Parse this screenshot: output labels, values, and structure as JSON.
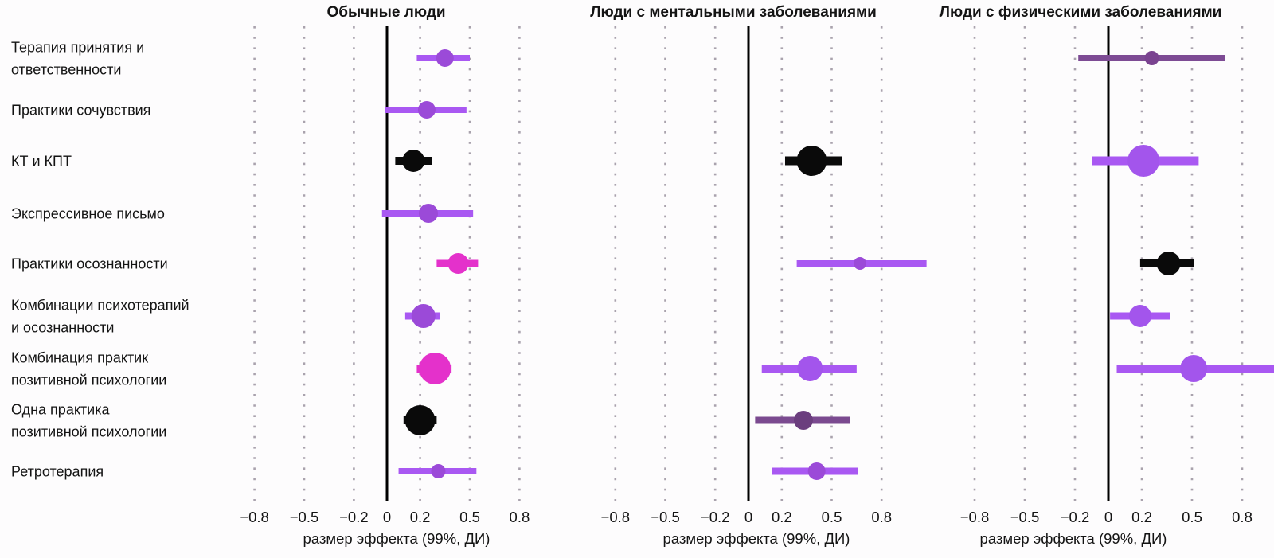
{
  "chart_data": {
    "type": "scatter",
    "variant": "forest-plot-three-panels",
    "xlabel": "размер эффекта (99%, ДИ)",
    "xticks": [
      -0.8,
      -0.5,
      -0.2,
      0,
      0.2,
      0.5,
      0.8
    ],
    "xtick_labels": [
      "−0.8",
      "−0.5",
      "−0.2",
      "0",
      "0.2",
      "0.5",
      "0.8"
    ],
    "grid": "dotted vertical gridlines at each tick, solid black line at zero",
    "categories": [
      {
        "label": "Терапия принятия и ответственности",
        "lines": [
          "Терапия принятия и",
          "ответственности"
        ]
      },
      {
        "label": "Практики сочувствия",
        "lines": [
          "Практики сочувствия"
        ]
      },
      {
        "label": "КТ и КПТ",
        "lines": [
          "КТ и КПТ"
        ]
      },
      {
        "label": "Экспрессивное письмо",
        "lines": [
          "Экспрессивное письмо"
        ]
      },
      {
        "label": "Практики осознанности",
        "lines": [
          "Практики осознанности"
        ]
      },
      {
        "label": "Комбинации психотерапий и осознанности",
        "lines": [
          "Комбинации психотерапий",
          "и осознанности"
        ]
      },
      {
        "label": "Комбинация практик позитивной психологии",
        "lines": [
          "Комбинация практик",
          "позитивной психологии"
        ]
      },
      {
        "label": "Одна практика позитивной психологии",
        "lines": [
          "Одна практика",
          "позитивной психологии"
        ]
      },
      {
        "label": "Ретротерапия",
        "lines": [
          "Ретротерапия"
        ]
      }
    ],
    "panels": [
      {
        "title": "Обычные люди",
        "xlim": [
          -0.88,
          0.9
        ],
        "points": [
          {
            "category": 0,
            "value": 0.35,
            "ci": [
              0.18,
              0.5
            ],
            "radius": 11,
            "lw": 8,
            "dot": "violet_mid",
            "line": "violet"
          },
          {
            "category": 1,
            "value": 0.24,
            "ci": [
              -0.01,
              0.48
            ],
            "radius": 11,
            "lw": 8,
            "dot": "violet_mid",
            "line": "violet"
          },
          {
            "category": 2,
            "value": 0.16,
            "ci": [
              0.05,
              0.27
            ],
            "radius": 14,
            "lw": 10,
            "dot": "black",
            "line": "black"
          },
          {
            "category": 3,
            "value": 0.25,
            "ci": [
              -0.03,
              0.52
            ],
            "radius": 12,
            "lw": 8,
            "dot": "violet_mid",
            "line": "violet"
          },
          {
            "category": 4,
            "value": 0.43,
            "ci": [
              0.3,
              0.55
            ],
            "radius": 13,
            "lw": 9,
            "dot": "magenta",
            "line": "magenta"
          },
          {
            "category": 5,
            "value": 0.22,
            "ci": [
              0.11,
              0.32
            ],
            "radius": 15,
            "lw": 9,
            "dot": "violet_mid",
            "line": "violet"
          },
          {
            "category": 6,
            "value": 0.29,
            "ci": [
              0.18,
              0.39
            ],
            "radius": 20,
            "lw": 10,
            "dot": "magenta",
            "line": "magenta"
          },
          {
            "category": 7,
            "value": 0.2,
            "ci": [
              0.1,
              0.3
            ],
            "radius": 19,
            "lw": 10,
            "dot": "black",
            "line": "black"
          },
          {
            "category": 8,
            "value": 0.31,
            "ci": [
              0.07,
              0.54
            ],
            "radius": 9,
            "lw": 8,
            "dot": "violet_mid",
            "line": "violet"
          }
        ]
      },
      {
        "title": "Люди с ментальными заболеваниями",
        "xlim": [
          -0.86,
          1.1
        ],
        "points": [
          {
            "category": 2,
            "value": 0.38,
            "ci": [
              0.22,
              0.56
            ],
            "radius": 19,
            "lw": 11,
            "dot": "black",
            "line": "black"
          },
          {
            "category": 4,
            "value": 0.67,
            "ci": [
              0.29,
              1.07
            ],
            "radius": 8,
            "lw": 8,
            "dot": "violet_mid",
            "line": "violet"
          },
          {
            "category": 6,
            "value": 0.37,
            "ci": [
              0.08,
              0.65
            ],
            "radius": 16,
            "lw": 10,
            "dot": "violet_bright",
            "line": "violet"
          },
          {
            "category": 7,
            "value": 0.33,
            "ci": [
              0.04,
              0.61
            ],
            "radius": 12,
            "lw": 9,
            "dot": "plum_dark",
            "line": "plum_dark_line"
          },
          {
            "category": 8,
            "value": 0.41,
            "ci": [
              0.14,
              0.66
            ],
            "radius": 11,
            "lw": 9,
            "dot": "violet_mid",
            "line": "violet"
          }
        ]
      },
      {
        "title": "Люди с физическими заболеваниями",
        "xlim": [
          -0.9,
          1.0
        ],
        "points": [
          {
            "category": 0,
            "value": 0.26,
            "ci": [
              -0.18,
              0.7
            ],
            "radius": 9,
            "lw": 8,
            "dot": "plum",
            "line": "plum_line"
          },
          {
            "category": 2,
            "value": 0.21,
            "ci": [
              -0.1,
              0.54
            ],
            "radius": 20,
            "lw": 11,
            "dot": "violet_bright",
            "line": "violet"
          },
          {
            "category": 4,
            "value": 0.36,
            "ci": [
              0.19,
              0.51
            ],
            "radius": 15,
            "lw": 10,
            "dot": "black",
            "line": "black"
          },
          {
            "category": 5,
            "value": 0.19,
            "ci": [
              0.01,
              0.37
            ],
            "radius": 14,
            "lw": 9,
            "dot": "violet_bright",
            "line": "violet"
          },
          {
            "category": 6,
            "value": 0.51,
            "ci": [
              0.05,
              1.02
            ],
            "radius": 17,
            "lw": 10,
            "dot": "violet_bright",
            "line": "violet"
          }
        ]
      }
    ],
    "palette": {
      "violet": "#a958f2",
      "violet_mid": "#9b4ad8",
      "violet_bright": "#a355ec",
      "magenta": "#e431cb",
      "plum_dark": "#6b3e7e",
      "plum_dark_line": "#7b4a90",
      "plum": "#7a4390",
      "plum_line": "#7d4b94",
      "black": "#0a0a0a",
      "grid": "#a9a2ad",
      "zero_line": "#000000",
      "text": "#141414"
    }
  }
}
